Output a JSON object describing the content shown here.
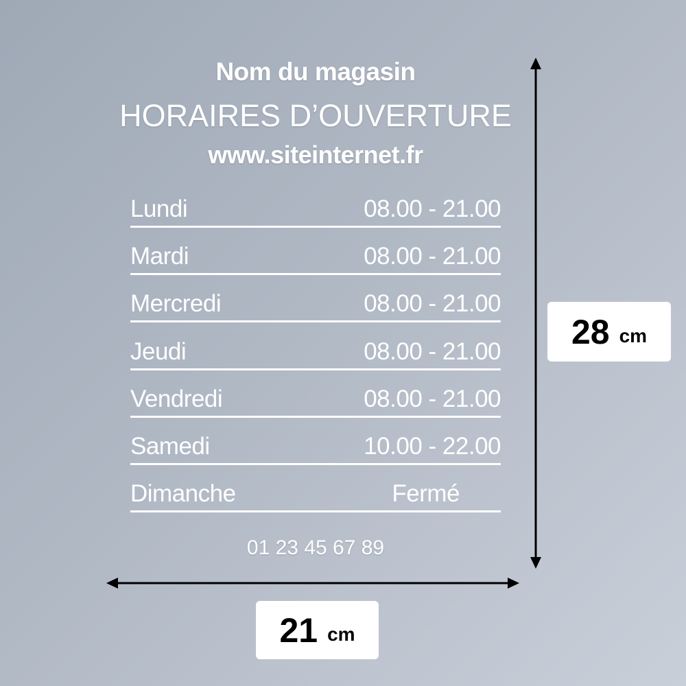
{
  "header": {
    "store_name": "Nom du magasin",
    "title": "HORAIRES D’OUVERTURE",
    "website": "www.siteinternet.fr"
  },
  "schedule": [
    {
      "day": "Lundi",
      "hours": "08.00 - 21.00"
    },
    {
      "day": "Mardi",
      "hours": "08.00 - 21.00"
    },
    {
      "day": "Mercredi",
      "hours": "08.00 - 21.00"
    },
    {
      "day": "Jeudi",
      "hours": "08.00 - 21.00"
    },
    {
      "day": "Vendredi",
      "hours": "08.00 - 21.00"
    },
    {
      "day": "Samedi",
      "hours": "10.00 - 22.00"
    },
    {
      "day": "Dimanche",
      "hours": "Fermé"
    }
  ],
  "phone": "01 23 45 67 89",
  "dimensions": {
    "height": {
      "value": "28",
      "unit": "cm"
    },
    "width": {
      "value": "21",
      "unit": "cm"
    }
  }
}
